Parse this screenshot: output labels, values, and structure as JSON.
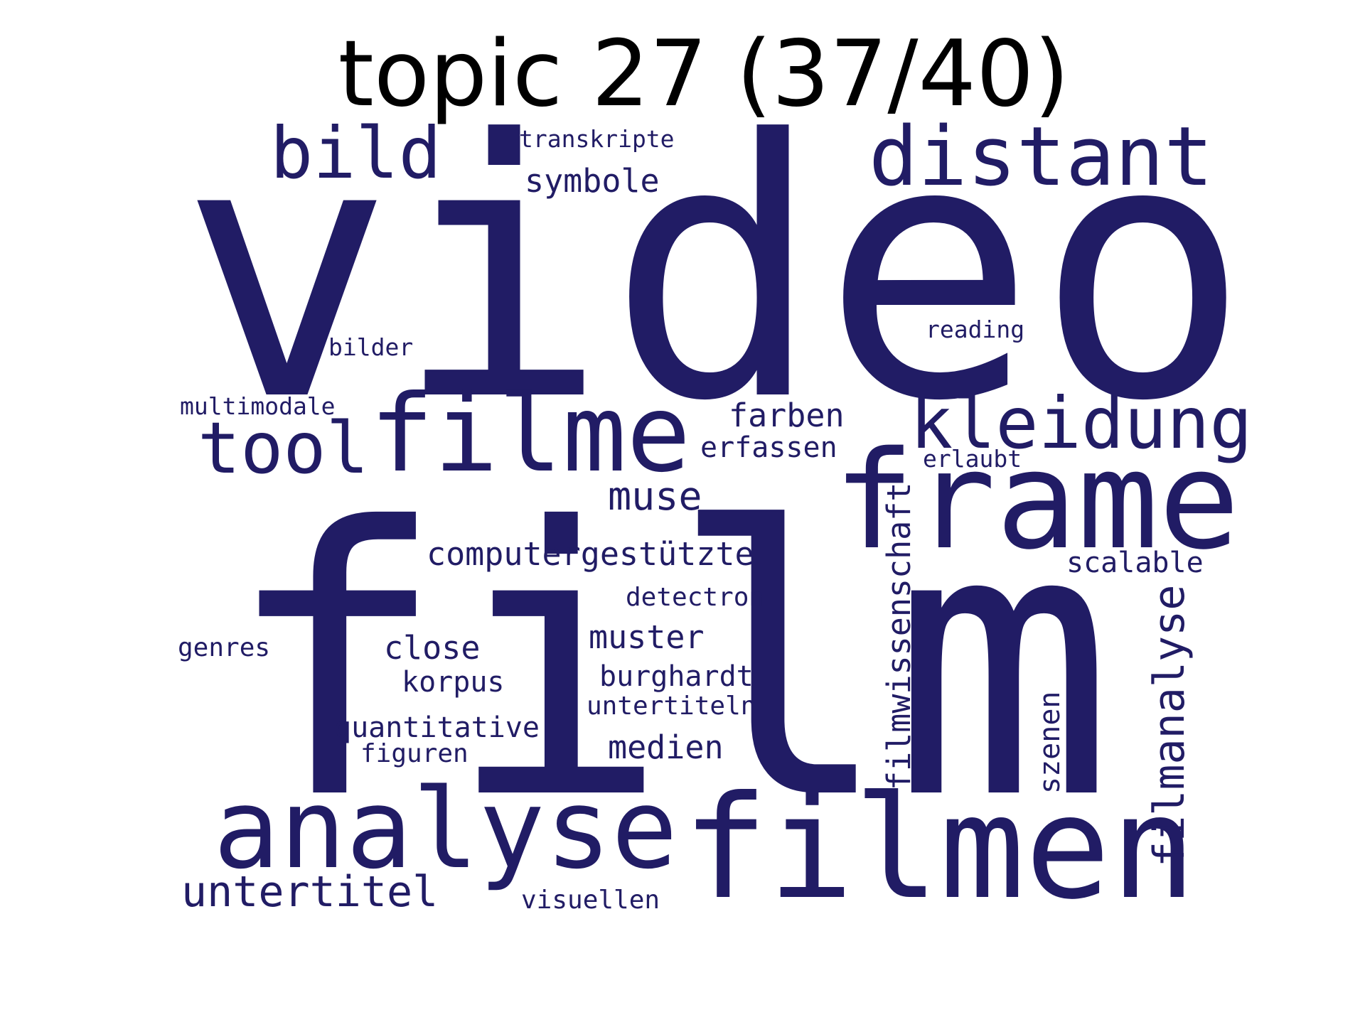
{
  "title": "topic 27 (37/40)",
  "colors": {
    "background": "#ffffff",
    "title": "#000000",
    "word": "#211c65"
  },
  "words": [
    "video",
    "film",
    "filmen",
    "analyse",
    "frame",
    "filme",
    "distant",
    "kleidung",
    "bild",
    "tool",
    "untertitel",
    "filmanalyse",
    "computergestützte",
    "filmwissenschaft",
    "muse",
    "symbole",
    "scalable",
    "farben",
    "medien",
    "close",
    "erfassen",
    "muster",
    "szenen",
    "burghardt",
    "quantitative",
    "korpus",
    "detectron",
    "visuellen",
    "transkripte",
    "untertiteln",
    "reading",
    "genres",
    "bilder",
    "erlaubt",
    "figuren",
    "multimodale"
  ]
}
